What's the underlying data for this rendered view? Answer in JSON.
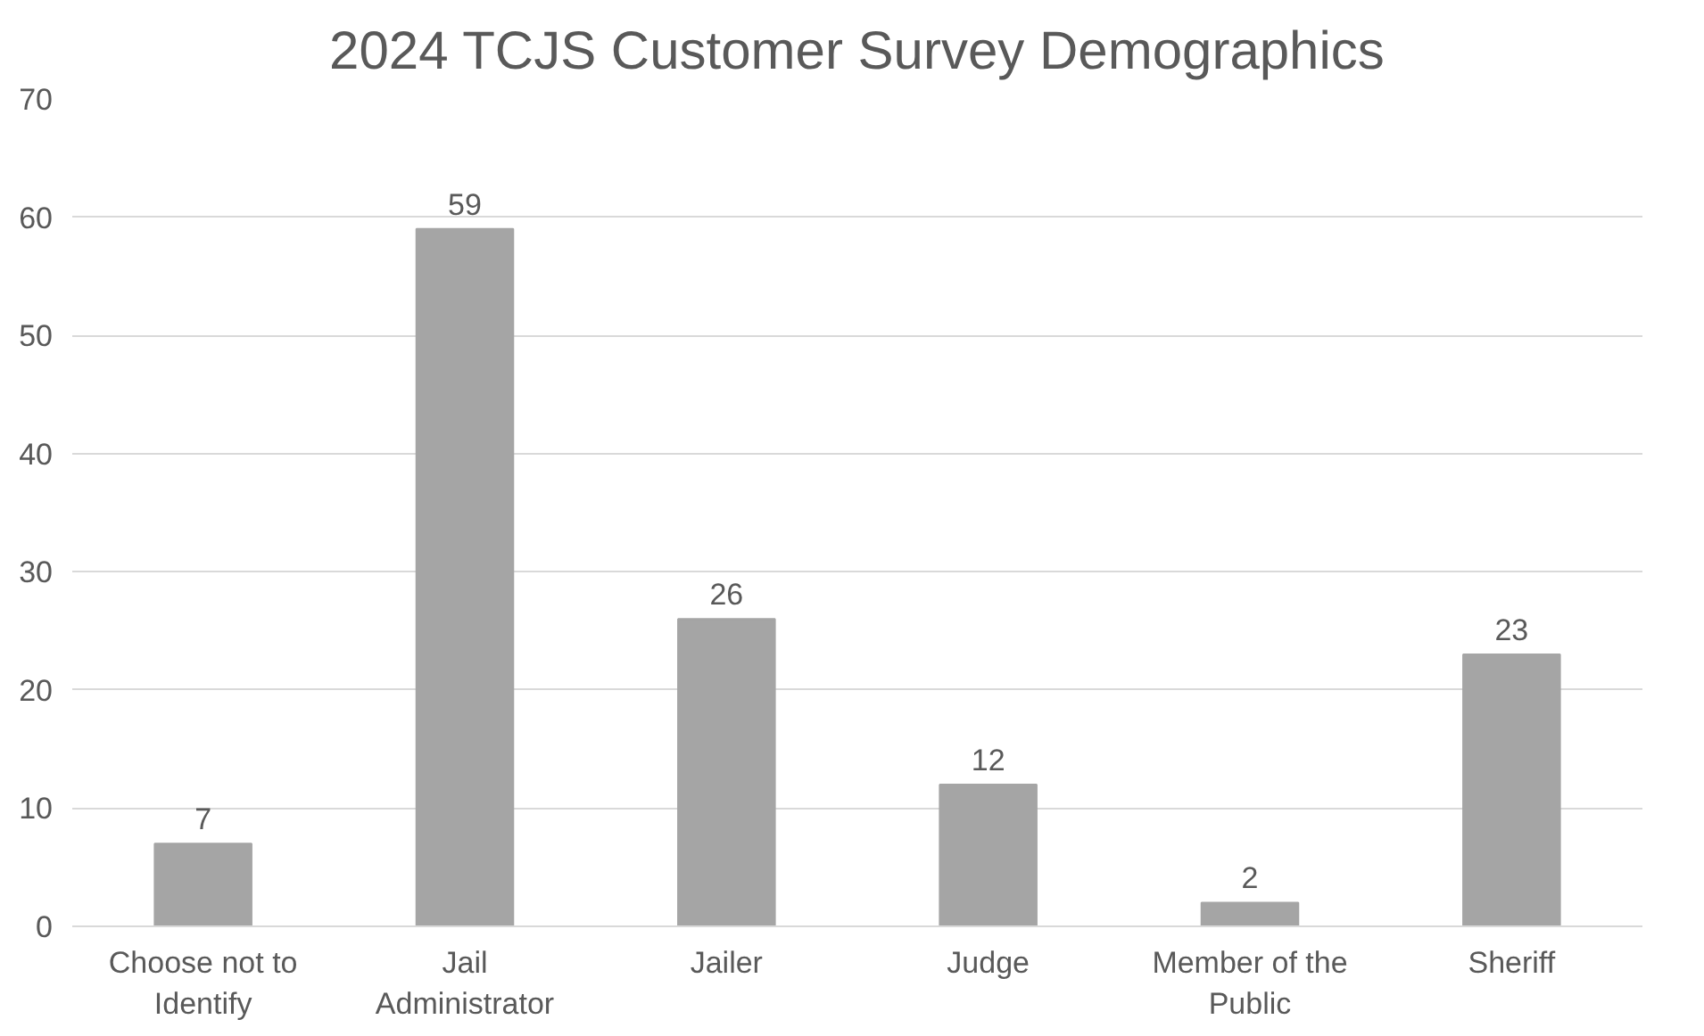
{
  "chart_data": {
    "type": "bar",
    "title": "2024 TCJS Customer Survey Demographics",
    "categories": [
      "Choose not to Identify",
      "Jail Administrator",
      "Jailer",
      "Judge",
      "Member of the Public",
      "Sheriff"
    ],
    "values": [
      7,
      59,
      26,
      12,
      2,
      23
    ],
    "color": "#a5a5a5",
    "ylim": [
      0,
      70
    ],
    "yticks": [
      0,
      10,
      20,
      30,
      40,
      50,
      60,
      70
    ],
    "grid": "y",
    "data_labels": true
  }
}
